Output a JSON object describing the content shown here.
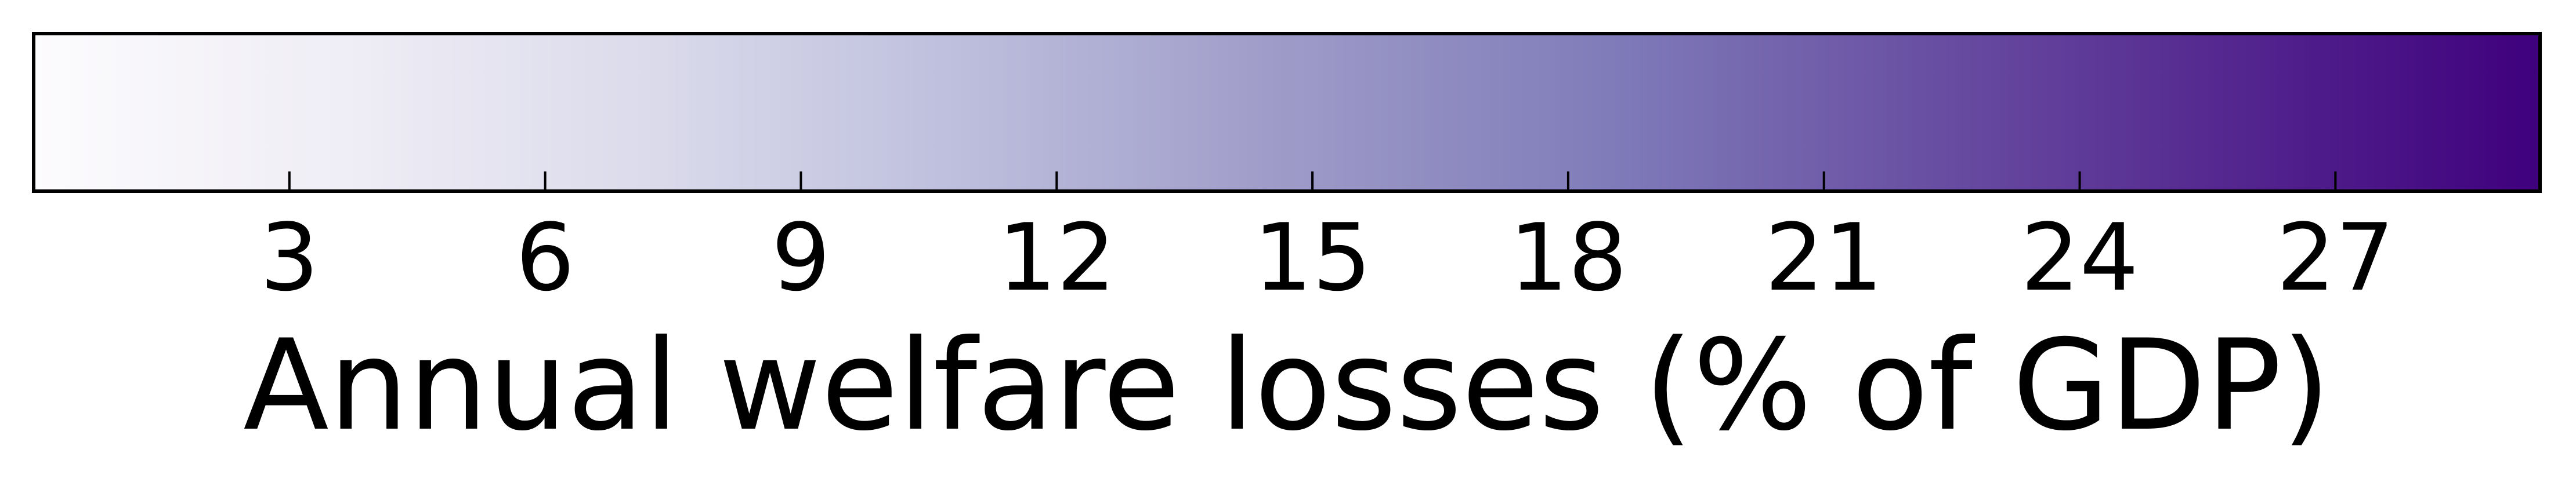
{
  "chart_data": {
    "type": "colorbar",
    "orientation": "horizontal",
    "colormap": "Purples",
    "colors": [
      "#fcfbfd",
      "#efedf5",
      "#dadaeb",
      "#bcbddc",
      "#9e9ac8",
      "#807dba",
      "#6a51a3",
      "#54278f",
      "#3f007d"
    ],
    "range": [
      0,
      29.4
    ],
    "ticks": [
      3,
      6,
      9,
      12,
      15,
      18,
      21,
      24,
      27
    ],
    "tick_labels": [
      "3",
      "6",
      "9",
      "12",
      "15",
      "18",
      "21",
      "24",
      "27"
    ],
    "xlabel": "Annual welfare losses (% of GDP)"
  }
}
